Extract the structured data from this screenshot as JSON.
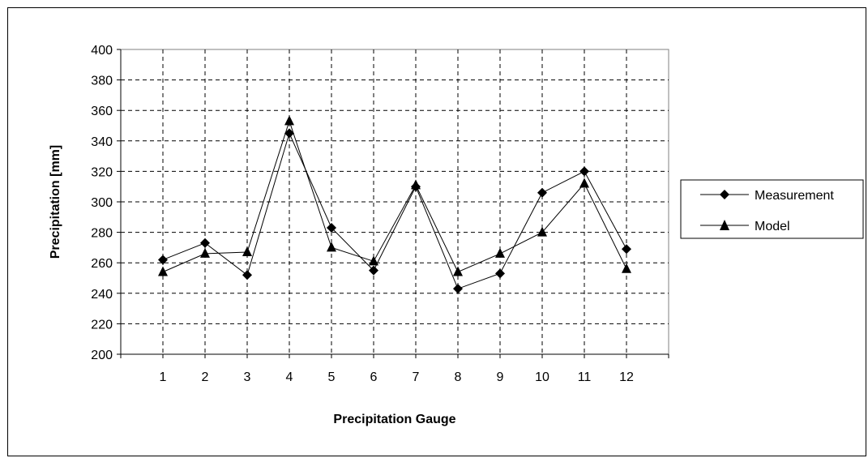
{
  "chart_data": {
    "type": "line",
    "xlabel": "Precipitation Gauge",
    "ylabel": "Precipitation [mm]",
    "categories": [
      "1",
      "2",
      "3",
      "4",
      "5",
      "6",
      "7",
      "8",
      "9",
      "10",
      "11",
      "12"
    ],
    "ylim": [
      200,
      400
    ],
    "yticks": [
      "200",
      "220",
      "240",
      "260",
      "280",
      "300",
      "320",
      "340",
      "360",
      "380",
      "400"
    ],
    "grid": true,
    "legend_position": "right",
    "series": [
      {
        "name": "Measurement",
        "marker": "diamond",
        "values": [
          262,
          273,
          252,
          345,
          283,
          255,
          310,
          243,
          253,
          306,
          320,
          269
        ]
      },
      {
        "name": "Model",
        "marker": "triangle",
        "values": [
          254,
          266,
          267,
          353,
          270,
          261,
          311,
          254,
          266,
          280,
          312,
          256
        ]
      }
    ]
  }
}
